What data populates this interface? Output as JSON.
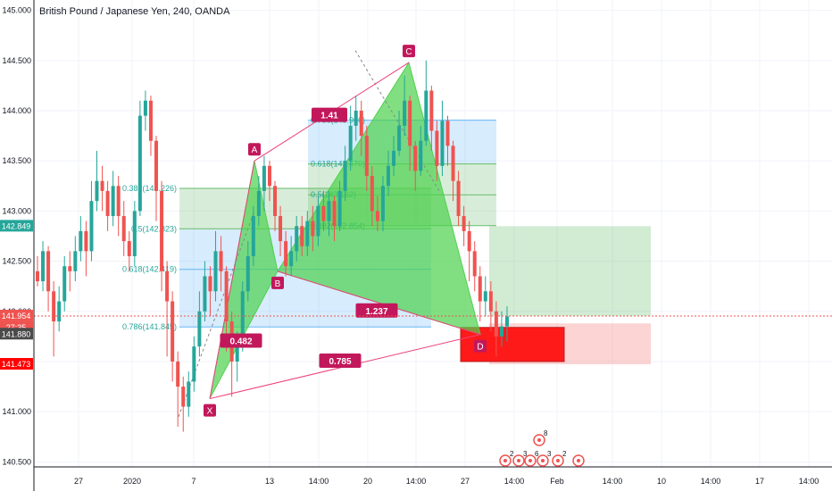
{
  "title": "British Pound / Japanese Yen, 240, OANDA",
  "chart_data": {
    "type": "candlestick",
    "symbol": "British Pound / Japanese Yen",
    "interval": "240",
    "broker": "OANDA",
    "ylim": [
      140.45,
      145.05
    ],
    "y_ticks": [
      "145.000",
      "144.500",
      "144.000",
      "143.500",
      "143.000",
      "142.500",
      "142.000",
      "141.500",
      "141.000",
      "140.500"
    ],
    "x_ticks": [
      "27",
      "2020",
      "7",
      "13",
      "14:00",
      "20",
      "14:00",
      "27",
      "14:00",
      "Feb",
      "14:00",
      "10",
      "14:00",
      "17",
      "14:00"
    ],
    "price_badges": [
      {
        "label": "142.849",
        "color": "#26a69a"
      },
      {
        "label": "141.954",
        "color": "#ef5350"
      },
      {
        "label": "27:35",
        "color": "#ef5350"
      },
      {
        "label": "141.880",
        "color": "#4a4a4a"
      },
      {
        "label": "141.473",
        "color": "#ff0000"
      }
    ],
    "pattern_points": [
      {
        "label": "X",
        "price": 141.13
      },
      {
        "label": "A",
        "price": 143.5
      },
      {
        "label": "B",
        "price": 142.4
      },
      {
        "label": "C",
        "price": 144.48
      },
      {
        "label": "D",
        "price": 141.77
      }
    ],
    "ratios": [
      "1.41",
      "0.482",
      "1.237",
      "0.785"
    ],
    "fib_left": [
      {
        "label": "0.382(143.226)",
        "price": 143.226
      },
      {
        "label": "0.5(142.823)",
        "price": 142.823
      },
      {
        "label": "0.618(142.419)",
        "price": 142.419
      },
      {
        "label": "0.786(141.845)",
        "price": 141.845
      }
    ],
    "fib_right": [
      {
        "label": "0.786(143.906)",
        "price": 143.906
      },
      {
        "label": "0.618(143.470)",
        "price": 143.47
      },
      {
        "label": "0.5(143.162)",
        "price": 143.162
      },
      {
        "label": "0.382(142.854)",
        "price": 142.854
      }
    ],
    "candles": [
      [
        142.4,
        142.3,
        142.55,
        142.25
      ],
      [
        142.3,
        142.6,
        142.7,
        142.2
      ],
      [
        142.6,
        142.2,
        142.65,
        142.0
      ],
      [
        142.2,
        141.9,
        142.3,
        141.55
      ],
      [
        141.9,
        142.1,
        142.25,
        141.8
      ],
      [
        142.1,
        142.45,
        142.55,
        142.0
      ],
      [
        142.45,
        142.4,
        142.6,
        142.2
      ],
      [
        142.4,
        142.6,
        142.75,
        142.3
      ],
      [
        142.6,
        142.8,
        142.95,
        142.5
      ],
      [
        142.8,
        142.6,
        142.9,
        142.35
      ],
      [
        142.6,
        143.1,
        143.3,
        142.5
      ],
      [
        143.1,
        143.3,
        143.6,
        143.0
      ],
      [
        143.3,
        143.2,
        143.45,
        143.0
      ],
      [
        143.2,
        142.95,
        143.3,
        142.8
      ],
      [
        142.95,
        143.25,
        143.4,
        142.85
      ],
      [
        143.25,
        142.95,
        143.35,
        142.75
      ],
      [
        142.95,
        142.7,
        143.1,
        142.55
      ],
      [
        142.7,
        142.55,
        142.8,
        142.4
      ],
      [
        142.55,
        143.0,
        143.1,
        142.45
      ],
      [
        143.0,
        143.95,
        144.1,
        142.95
      ],
      [
        143.95,
        144.1,
        144.2,
        143.8
      ],
      [
        144.1,
        143.7,
        144.15,
        143.55
      ],
      [
        143.7,
        143.2,
        143.75,
        142.9
      ],
      [
        143.2,
        142.4,
        143.3,
        142.2
      ],
      [
        142.4,
        142.1,
        142.5,
        141.55
      ],
      [
        142.1,
        141.5,
        142.2,
        141.3
      ],
      [
        141.5,
        141.25,
        141.6,
        140.85
      ],
      [
        141.25,
        141.05,
        141.35,
        140.8
      ],
      [
        141.05,
        141.3,
        141.4,
        140.95
      ],
      [
        141.3,
        141.65,
        141.75,
        141.2
      ],
      [
        141.65,
        142.0,
        142.2,
        141.55
      ],
      [
        142.0,
        142.35,
        142.5,
        141.9
      ],
      [
        142.35,
        142.2,
        142.45,
        141.95
      ],
      [
        142.2,
        142.6,
        142.8,
        142.1
      ],
      [
        142.6,
        142.4,
        142.75,
        142.2
      ],
      [
        142.4,
        141.9,
        142.45,
        141.6
      ],
      [
        141.9,
        141.5,
        142.0,
        141.15
      ],
      [
        141.5,
        141.7,
        141.8,
        141.3
      ],
      [
        141.7,
        142.2,
        142.3,
        141.6
      ],
      [
        142.2,
        142.55,
        142.7,
        142.1
      ],
      [
        142.55,
        142.95,
        143.05,
        142.45
      ],
      [
        142.95,
        143.2,
        143.35,
        142.85
      ],
      [
        143.2,
        143.45,
        143.55,
        143.0
      ],
      [
        143.45,
        143.25,
        143.5,
        143.1
      ],
      [
        143.25,
        142.95,
        143.3,
        142.8
      ],
      [
        142.95,
        142.7,
        143.05,
        142.55
      ],
      [
        142.7,
        142.45,
        142.8,
        142.35
      ],
      [
        142.45,
        142.6,
        142.75,
        142.35
      ],
      [
        142.6,
        142.85,
        142.95,
        142.5
      ],
      [
        142.85,
        142.65,
        142.95,
        142.55
      ],
      [
        142.65,
        142.9,
        143.0,
        142.55
      ],
      [
        142.9,
        142.75,
        143.05,
        142.6
      ],
      [
        142.75,
        143.05,
        143.15,
        142.65
      ],
      [
        143.05,
        142.9,
        143.2,
        142.8
      ],
      [
        142.9,
        143.1,
        143.2,
        142.75
      ],
      [
        143.1,
        142.85,
        143.15,
        142.7
      ],
      [
        142.85,
        143.2,
        143.3,
        142.8
      ],
      [
        143.2,
        143.5,
        143.65,
        143.1
      ],
      [
        143.5,
        143.85,
        144.05,
        143.4
      ],
      [
        143.85,
        144.0,
        144.15,
        143.7
      ],
      [
        144.0,
        143.75,
        144.1,
        143.55
      ],
      [
        143.75,
        143.35,
        143.85,
        143.2
      ],
      [
        143.35,
        143.0,
        143.45,
        142.85
      ],
      [
        143.0,
        142.9,
        143.15,
        142.8
      ],
      [
        142.9,
        143.25,
        143.35,
        142.8
      ],
      [
        143.25,
        143.45,
        143.6,
        143.15
      ],
      [
        143.45,
        143.6,
        143.75,
        143.35
      ],
      [
        143.6,
        143.85,
        144.0,
        143.55
      ],
      [
        143.85,
        144.1,
        144.35,
        143.75
      ],
      [
        144.1,
        143.65,
        144.15,
        143.4
      ],
      [
        143.65,
        143.4,
        143.7,
        143.2
      ],
      [
        143.4,
        143.7,
        143.85,
        143.35
      ],
      [
        143.7,
        144.2,
        144.5,
        143.65
      ],
      [
        144.2,
        143.8,
        144.25,
        143.6
      ],
      [
        143.8,
        143.45,
        143.9,
        143.3
      ],
      [
        143.45,
        143.9,
        144.1,
        143.35
      ],
      [
        143.9,
        143.65,
        143.95,
        143.45
      ],
      [
        143.65,
        143.3,
        143.7,
        143.1
      ],
      [
        143.3,
        142.95,
        143.4,
        142.85
      ],
      [
        142.95,
        142.8,
        143.05,
        142.65
      ],
      [
        142.8,
        142.6,
        142.9,
        142.3
      ],
      [
        142.6,
        142.35,
        142.7,
        142.2
      ],
      [
        142.35,
        142.1,
        142.45,
        141.9
      ],
      [
        142.1,
        142.2,
        142.35,
        141.95
      ],
      [
        142.2,
        142.0,
        142.3,
        141.8
      ],
      [
        142.0,
        141.75,
        142.1,
        141.55
      ],
      [
        141.75,
        141.85,
        142.0,
        141.65
      ],
      [
        141.85,
        141.95,
        142.05,
        141.7
      ]
    ]
  },
  "axis_badge_labels": {
    "upper": "142.849",
    "last": "141.954",
    "timer": "27:35",
    "mid": "141.880",
    "target": "141.473"
  },
  "event_markers": [
    "2",
    "3",
    "6",
    "3",
    "2",
    "8"
  ],
  "colors": {
    "up": "#26a69a",
    "down": "#ef5350",
    "pattern": "#4fd14f",
    "pattern_line": "#ec407a",
    "label_bg": "#c2185b",
    "axis_text": "#131722",
    "grid": "#f0f3fa"
  }
}
